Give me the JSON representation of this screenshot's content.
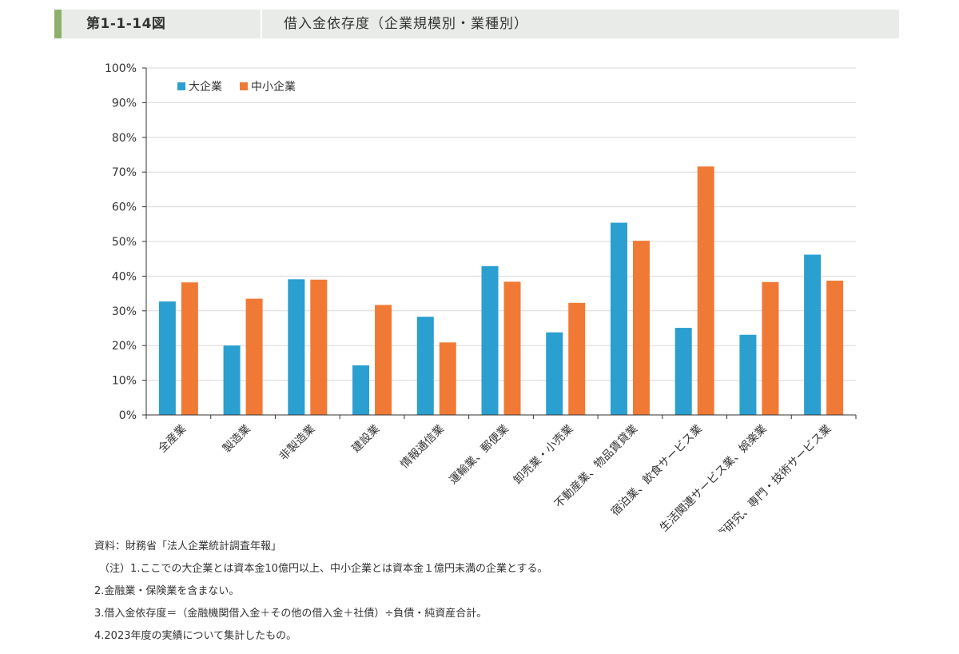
{
  "header": {
    "figure_no": "第1-1-14図",
    "title": "借入金依存度（企業規模別・業種別）"
  },
  "colors": {
    "large": "#2a9fd0",
    "sme": "#f07a35",
    "grid": "#d9d9d9",
    "axis": "#333333"
  },
  "chart_data": {
    "type": "bar",
    "title": "借入金依存度（企業規模別・業種別）",
    "categories": [
      "全産業",
      "製造業",
      "非製造業",
      "建設業",
      "情報通信業",
      "運輸業、郵便業",
      "卸売業・小売業",
      "不動産業、物品賃貸業",
      "宿泊業、飲食サービス業",
      "生活関連サービス業、娯楽業",
      "学術研究、専門・技術サービス業"
    ],
    "series": [
      {
        "name": "大企業",
        "values": [
          32.7,
          20.0,
          39.1,
          14.3,
          28.3,
          42.9,
          23.8,
          55.4,
          25.1,
          23.1,
          46.2
        ]
      },
      {
        "name": "中小企業",
        "values": [
          38.2,
          33.5,
          39.0,
          31.7,
          20.9,
          38.4,
          32.3,
          50.2,
          71.6,
          38.3,
          38.7
        ]
      }
    ],
    "yticks": [
      "0%",
      "10%",
      "20%",
      "30%",
      "40%",
      "50%",
      "60%",
      "70%",
      "80%",
      "90%",
      "100%"
    ],
    "ylim": [
      0,
      100
    ],
    "grid": true,
    "legend": "top-left"
  },
  "notes": [
    "資料：財務省「法人企業統計調査年報」",
    "（注）1.ここでの大企業とは資本金10億円以上、中小企業とは資本金１億円未満の企業とする。",
    "2.金融業・保険業を含まない。",
    "3.借入金依存度＝（金融機関借入金＋その他の借入金＋社債）÷負債・純資産合計。",
    "4.2023年度の実績について集計したもの。"
  ]
}
